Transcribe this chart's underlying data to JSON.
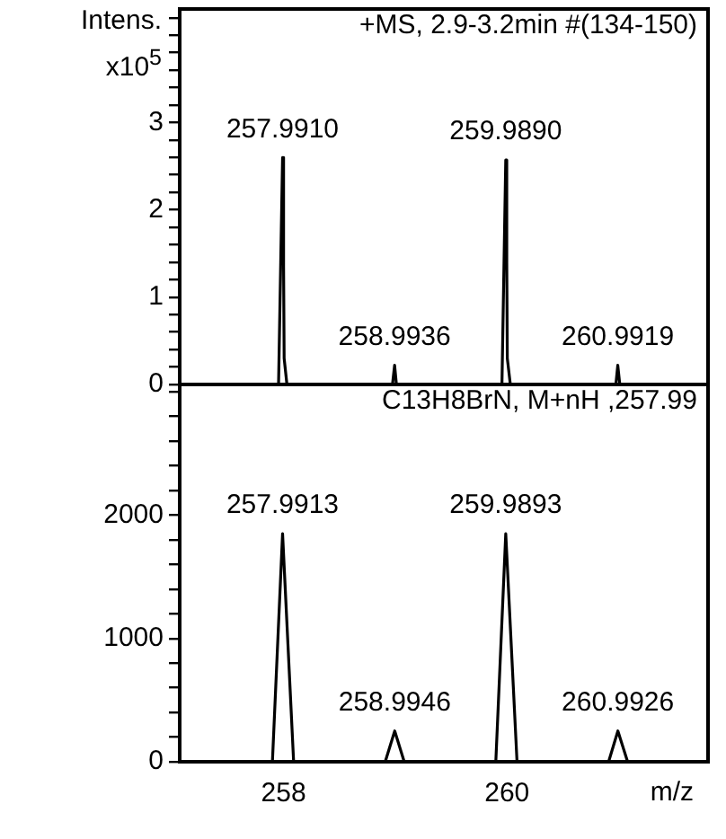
{
  "chart_data": [
    {
      "type": "line",
      "ylabel": "Intens. x10$^{5}$",
      "annotations": [
        "+MS, 2.9-3.2min #(134-150)",
        {
          "text": "257.9910",
          "x": 257.991,
          "y": 2.6
        },
        {
          "text": "259.9890",
          "x": 259.989,
          "y": 2.57
        },
        {
          "text": "258.9936",
          "x": 258.994,
          "y": 0.22
        },
        {
          "text": "260.9919",
          "x": 260.992,
          "y": 0.22
        }
      ],
      "series": [
        {
          "color": "#000000",
          "x": [
            257.07,
            257.955,
            257.991,
            258.0,
            258.005,
            258.03,
            258.975,
            258.994,
            259.01,
            259.955,
            259.989,
            259.998,
            260.003,
            260.03,
            260.975,
            260.992,
            261.01,
            261.8
          ],
          "values": [
            0,
            0,
            2.6,
            1.35,
            0.3,
            0,
            0,
            0.22,
            0,
            0,
            2.57,
            1.4,
            0.3,
            0,
            0,
            0.22,
            0,
            0
          ]
        }
      ],
      "xlim": [
        257.07,
        261.8
      ],
      "ylim": [
        0,
        4.3
      ],
      "yticks": [
        0,
        {
          "value": 0.2,
          "label": null
        },
        {
          "value": 0.4,
          "label": null
        },
        {
          "value": 0.6,
          "label": null
        },
        {
          "value": 0.8,
          "label": null
        },
        1,
        {
          "value": 1.2,
          "label": null
        },
        {
          "value": 1.4,
          "label": null
        },
        {
          "value": 1.6,
          "label": null
        },
        {
          "value": 1.8,
          "label": null
        },
        2,
        {
          "value": 2.2,
          "label": null
        },
        {
          "value": 2.4,
          "label": null
        },
        {
          "value": 2.6,
          "label": null
        },
        {
          "value": 2.8,
          "label": null
        },
        3,
        {
          "value": 3.2,
          "label": null
        },
        {
          "value": 3.4,
          "label": null
        },
        {
          "value": 3.6,
          "label": null
        },
        {
          "value": 3.8,
          "label": null
        },
        {
          "value": 4,
          "label": null
        },
        {
          "value": 4.2,
          "label": null
        }
      ],
      "tick_labels": "y",
      "marker": "none"
    },
    {
      "type": "line",
      "xlabel": "m/z",
      "annotations": [
        "C13H8BrN, M+nH ,257.99",
        {
          "text": "257.9913",
          "x": 257.991,
          "y": 1850
        },
        {
          "text": "259.9893",
          "x": 259.989,
          "y": 1850
        },
        {
          "text": "258.9946",
          "x": 258.995,
          "y": 250
        },
        {
          "text": "260.9926",
          "x": 260.993,
          "y": 250
        }
      ],
      "series": [
        {
          "color": "#000000",
          "x": [
            257.07,
            257.9,
            257.991,
            258.09,
            258.91,
            258.995,
            259.08,
            259.9,
            259.989,
            260.09,
            260.91,
            260.993,
            261.08,
            261.8
          ],
          "values": [
            0,
            0,
            1850,
            0,
            0,
            250,
            0,
            0,
            1850,
            0,
            0,
            250,
            0,
            0
          ]
        }
      ],
      "xlim": [
        257.07,
        261.8
      ],
      "xticks": [
        258,
        260
      ],
      "ylim": [
        0,
        3060
      ],
      "yticks": [
        0,
        {
          "value": 200,
          "label": null
        },
        {
          "value": 400,
          "label": null
        },
        {
          "value": 600,
          "label": null
        },
        {
          "value": 800,
          "label": null
        },
        1000,
        {
          "value": 1200,
          "label": null
        },
        {
          "value": 1400,
          "label": null
        },
        {
          "value": 1600,
          "label": null
        },
        {
          "value": 1800,
          "label": null
        },
        2000,
        {
          "value": 2200,
          "label": null
        },
        {
          "value": 2400,
          "label": null
        },
        {
          "value": 2600,
          "label": null
        },
        {
          "value": 2800,
          "label": null
        },
        {
          "value": 3000,
          "label": null
        }
      ],
      "marker": "none"
    }
  ]
}
